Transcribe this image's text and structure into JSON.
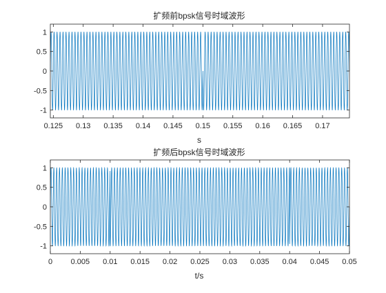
{
  "chart_data": [
    {
      "type": "line",
      "title": "扩频前bpsk信号时域波形",
      "xlabel": "s",
      "ylabel": "",
      "xlim": [
        0.1245,
        0.1745
      ],
      "ylim": [
        -1.2,
        1.2
      ],
      "xticks": [
        0.125,
        0.13,
        0.135,
        0.14,
        0.145,
        0.15,
        0.155,
        0.16,
        0.165,
        0.17
      ],
      "xtick_labels": [
        "0.125",
        "0.13",
        "0.135",
        "0.14",
        "0.145",
        "0.15",
        "0.155",
        "0.16",
        "0.165",
        "0.17"
      ],
      "yticks": [
        1,
        0.5,
        0,
        -0.5,
        -1
      ],
      "ytick_labels": [
        "1",
        "0.5",
        "0",
        "-0.5",
        "-1"
      ],
      "carrier_freq_hz": 2000,
      "phase_flips": [
        0.15
      ],
      "color": "#0072BD",
      "grid": false
    },
    {
      "type": "line",
      "title": "扩频后bpsk信号时域波形",
      "xlabel": "t/s",
      "ylabel": "",
      "xlim": [
        0,
        0.05
      ],
      "ylim": [
        -1.2,
        1.2
      ],
      "xticks": [
        0,
        0.005,
        0.01,
        0.015,
        0.02,
        0.025,
        0.03,
        0.035,
        0.04,
        0.045,
        0.05
      ],
      "xtick_labels": [
        "0",
        "0.005",
        "0.01",
        "0.015",
        "0.02",
        "0.025",
        "0.03",
        "0.035",
        "0.04",
        "0.045",
        "0.05"
      ],
      "yticks": [
        1,
        0.5,
        0,
        -0.5,
        -1
      ],
      "ytick_labels": [
        "1",
        "0.5",
        "0",
        "-0.5",
        "-1"
      ],
      "carrier_freq_hz": 2120,
      "phase_flips": [
        0.01,
        0.04
      ],
      "color": "#0072BD",
      "grid": false
    }
  ]
}
